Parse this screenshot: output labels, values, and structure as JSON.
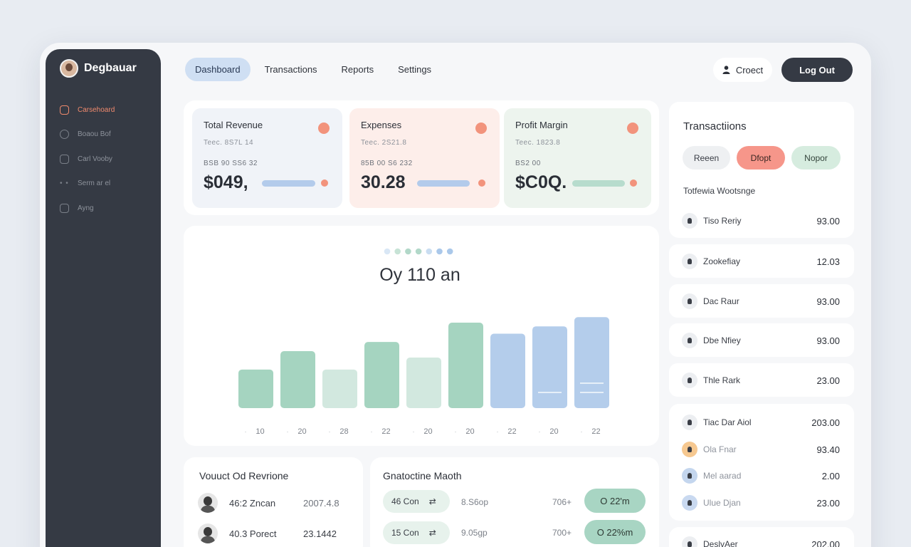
{
  "sidebar": {
    "brand": "Degbauar",
    "items": [
      {
        "label": "Carsehoard",
        "active": true
      },
      {
        "label": "Boaou Bof"
      },
      {
        "label": "Carl Vooby"
      },
      {
        "label": "Serm ar el"
      },
      {
        "label": "Ayng"
      }
    ]
  },
  "topnav": {
    "tabs": [
      "Dashboard",
      "Transactions",
      "Reports",
      "Settings"
    ],
    "user_label": "Croect",
    "logout_label": "Log Out"
  },
  "kpis": [
    {
      "title": "Total Revenue",
      "sub1": "Teec. 8S7L 14",
      "sub2": "BSB 90 SS6 32",
      "value": "$049,",
      "color": "#f0f3f8",
      "dot": "#f2937c",
      "bar": "#b3cbeb"
    },
    {
      "title": "Expenses",
      "sub1": "Teec. 2S21.8",
      "sub2": "85B 00 S6 232",
      "value": "30.28",
      "color": "#fdeeea",
      "dot": "#f2937c",
      "bar": "#b3cbeb"
    },
    {
      "title": "Profit Margin",
      "sub1": "Teec. 1823.8",
      "sub2": "BS2 00",
      "value": "$C0Q.",
      "color": "#edf4ee",
      "dot": "#f2937c",
      "bar": "#b7dccd"
    }
  ],
  "chart_data": {
    "type": "bar",
    "title": "Oy 110 an",
    "categories": [
      "10",
      "20",
      "28",
      "22",
      "20",
      "20",
      "22",
      "20",
      "22"
    ],
    "values": [
      42,
      62,
      42,
      72,
      55,
      93,
      81,
      89,
      99
    ],
    "colors": [
      "#a5d4c0",
      "#a5d4c0",
      "#d2e8df",
      "#a5d4c0",
      "#d2e8df",
      "#a5d4c0",
      "#b4cdeb",
      "#b4cdeb",
      "#b4cdeb"
    ],
    "ylim": [
      0,
      100
    ],
    "legend_dots": [
      "#d9e7f5",
      "#c7e3d6",
      "#b2d8c9",
      "#b2d8c9",
      "#c9ddf1",
      "#aac8ea",
      "#aac8ea"
    ]
  },
  "bottom_left": {
    "title": "Vouuct Od Revrione",
    "rows": [
      {
        "a": "46:2 Zncan",
        "b": "2007.4.8"
      },
      {
        "a": "40.3 Porect",
        "b": "23.1442"
      }
    ]
  },
  "bottom_right": {
    "title": "Gnatoctine Maoth",
    "rows": [
      {
        "pill": "46 Con",
        "arrow": "⇄",
        "c1": "8.S6op",
        "c2": "706+",
        "badge": "O  22'm"
      },
      {
        "pill": "15 Con",
        "arrow": "⇄",
        "c1": "9.05gp",
        "c2": "700+",
        "badge": "O  22%m"
      }
    ]
  },
  "transactions": {
    "title": "Transactiions",
    "filters": [
      {
        "label": "Reeen",
        "bg": "#eef0f2",
        "fg": "#3a3e46"
      },
      {
        "label": "Dfopt",
        "bg": "#f6968a",
        "fg": "#3a2622"
      },
      {
        "label": "Nopor",
        "bg": "#d6ecdf",
        "fg": "#33443b"
      }
    ],
    "subtitle": "Totfewia Wootsnge",
    "head_row": {
      "name": "Tiso Reriy",
      "amount": "93.00"
    },
    "cards": [
      {
        "name": "Zookefiay",
        "amount": "12.03"
      },
      {
        "name": "Dac Raur",
        "amount": "93.00"
      },
      {
        "name": "Dbe Nfiey",
        "amount": "93.00"
      },
      {
        "name": "Thle Rark",
        "amount": "23.00"
      }
    ],
    "group": [
      {
        "name": "Tiac Dar Aiol",
        "amount": "203.00",
        "icon_bg": "#eceef1"
      },
      {
        "name": "Ola Fnar",
        "amount": "93.40",
        "icon_bg": "#f6c890"
      },
      {
        "name": "Mel aarad",
        "amount": "2.00",
        "icon_bg": "#c4d6ee"
      },
      {
        "name": "Ulue Djan",
        "amount": "23.00",
        "icon_bg": "#c9d9f0"
      }
    ],
    "last": {
      "name": "DeslvAer",
      "amount": "202.00"
    }
  }
}
